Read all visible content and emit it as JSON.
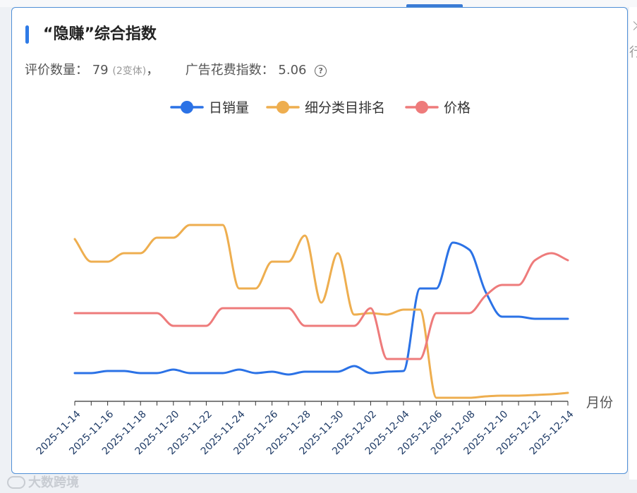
{
  "card": {
    "title": "“隐赚”综合指数",
    "review_label": "评价数量：",
    "review_value": "79",
    "review_sub": "(2变体)",
    "review_sep": "，",
    "ad_label": "广告花费指数：",
    "ad_value": "5.06",
    "help_icon": "?"
  },
  "watermark": {
    "text": "大数跨境"
  },
  "side": {
    "glyph": "行"
  },
  "chart_data": {
    "type": "line",
    "xlabel": "月份",
    "x": [
      "2025-11-14",
      "2025-11-15",
      "2025-11-16",
      "2025-11-17",
      "2025-11-18",
      "2025-11-19",
      "2025-11-20",
      "2025-11-21",
      "2025-11-22",
      "2025-11-23",
      "2025-11-24",
      "2025-11-25",
      "2025-11-26",
      "2025-11-27",
      "2025-11-28",
      "2025-11-29",
      "2025-11-30",
      "2025-12-01",
      "2025-12-02",
      "2025-12-03",
      "2025-12-04",
      "2025-12-05",
      "2025-12-06",
      "2025-12-07",
      "2025-12-08",
      "2025-12-09",
      "2025-12-10",
      "2025-12-11",
      "2025-12-12",
      "2025-12-13",
      "2025-12-14"
    ],
    "tick_labels": [
      "2025-11-14",
      "2025-11-16",
      "2025-11-18",
      "2025-11-20",
      "2025-11-22",
      "2025-11-24",
      "2025-11-26",
      "2025-11-28",
      "2025-11-30",
      "2025-12-02",
      "2025-12-04",
      "2025-12-06",
      "2025-12-08",
      "2025-12-10",
      "2025-12-12",
      "2025-12-14"
    ],
    "series": [
      {
        "name": "日销量",
        "color": "#2b72e6",
        "values": [
          40,
          40,
          43,
          43,
          40,
          40,
          45,
          40,
          40,
          40,
          45,
          40,
          42,
          38,
          42,
          42,
          42,
          50,
          40,
          42,
          43,
          160,
          160,
          225,
          215,
          155,
          120,
          120,
          117,
          117,
          117
        ]
      },
      {
        "name": "细分类目排名",
        "color": "#eeae4f",
        "values": [
          230,
          198,
          198,
          210,
          210,
          232,
          232,
          250,
          250,
          250,
          160,
          160,
          198,
          198,
          235,
          140,
          210,
          123,
          125,
          123,
          130,
          130,
          5,
          5,
          5,
          7,
          8,
          8,
          9,
          10,
          12
        ]
      },
      {
        "name": "价格",
        "color": "#ee7b7b",
        "values": [
          125,
          125,
          125,
          125,
          125,
          125,
          107,
          107,
          107,
          132,
          132,
          132,
          132,
          132,
          107,
          107,
          107,
          107,
          132,
          60,
          60,
          60,
          125,
          125,
          125,
          150,
          165,
          165,
          200,
          210,
          200
        ]
      }
    ],
    "ylim": [
      0,
      300
    ],
    "grid": false,
    "legend": "top-center"
  }
}
